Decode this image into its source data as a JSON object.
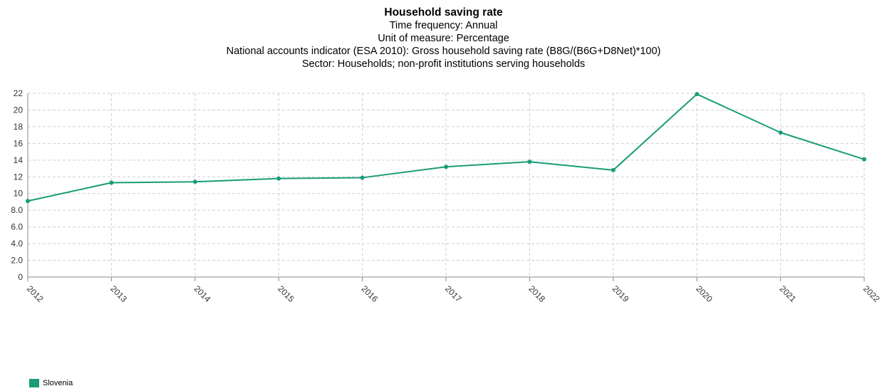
{
  "chart_data": {
    "type": "line",
    "title": "Household saving rate",
    "subtitles": [
      "Time frequency: Annual",
      "Unit of measure: Percentage",
      "National accounts indicator (ESA 2010): Gross household saving rate (B8G/(B6G+D8Net)*100)",
      "Sector: Households; non-profit institutions serving households"
    ],
    "x": [
      "2012",
      "2013",
      "2014",
      "2015",
      "2016",
      "2017",
      "2018",
      "2019",
      "2020",
      "2021",
      "2022"
    ],
    "series": [
      {
        "name": "Slovenia",
        "color": "#1a9c78",
        "values": [
          9.1,
          11.3,
          11.4,
          11.8,
          11.9,
          13.2,
          13.8,
          12.8,
          21.9,
          17.3,
          14.1
        ]
      }
    ],
    "yticks": [
      "0",
      "2.0",
      "4.0",
      "6.0",
      "8.0",
      "10",
      "12",
      "14",
      "16",
      "18",
      "20",
      "22"
    ],
    "ylim": [
      0,
      22
    ],
    "grid": true,
    "legend_position": "bottom-left"
  }
}
